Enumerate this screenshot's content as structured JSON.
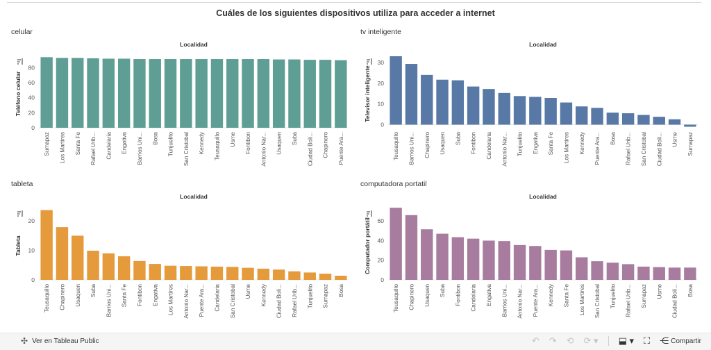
{
  "page": {
    "title": "Cuáles de los siguientes dispositivos utiliza para acceder a internet"
  },
  "footer": {
    "view_label": "Ver en Tableau Public",
    "share_label": "Compartir",
    "icons": [
      "undo-icon",
      "redo-icon",
      "revert-icon",
      "refresh-icon",
      "download-icon",
      "fullscreen-icon",
      "share-icon"
    ]
  },
  "chart_data": [
    {
      "type": "bar",
      "panel_title": "celular",
      "title": "Localidad",
      "xlabel": "",
      "ylabel": "Teléfono celular",
      "color": "#5f9e94",
      "ylim": [
        0,
        98
      ],
      "ticks": [
        0,
        20,
        40,
        60,
        80
      ],
      "categories": [
        "Sumapaz",
        "Los Martires",
        "Santa Fe",
        "Rafael Urib...",
        "Candelaria",
        "Engativa",
        "Barrios Uni...",
        "Bosa",
        "Tunjuelito",
        "San Cristobal",
        "Kennedy",
        "Teusaquillo",
        "Usme",
        "Fontibon",
        "Antonio Nar...",
        "Usaquen",
        "Suba",
        "Ciudad Bolí...",
        "Chapinero",
        "Puente Ara..."
      ],
      "values": [
        94,
        93,
        93,
        92.5,
        92,
        92,
        91.5,
        91.5,
        91.5,
        91.5,
        91.5,
        91.5,
        91.5,
        91.5,
        91.5,
        91,
        91,
        90.5,
        90.5,
        90
      ]
    },
    {
      "type": "bar",
      "panel_title": "tv inteligente",
      "title": "Localidad",
      "xlabel": "",
      "ylabel": "Televisor inteligente",
      "color": "#5878a6",
      "ylim": [
        -1.5,
        34
      ],
      "ticks": [
        0,
        10,
        20,
        30
      ],
      "categories": [
        "Teusaquillo",
        "Barrios Uni...",
        "Chapinero",
        "Usaquen",
        "Suba",
        "Fontibon",
        "Candelaria",
        "Antonio Nar...",
        "Tunjuelito",
        "Engativa",
        "Santa Fe",
        "Los Martires",
        "Kennedy",
        "Puente Ara...",
        "Bosa",
        "Rafael Urib...",
        "San Cristobal",
        "Ciudad Bolí...",
        "Usme",
        "Sumapaz"
      ],
      "values": [
        33,
        29.3,
        24,
        21.7,
        21.4,
        18.4,
        17.2,
        15.3,
        13.8,
        13.4,
        12.9,
        10.7,
        8.8,
        8.1,
        5.8,
        5.5,
        4.7,
        3.8,
        2.6,
        -1
      ]
    },
    {
      "type": "bar",
      "panel_title": "tableta",
      "title": "Localidad",
      "xlabel": "",
      "ylabel": "Tableta",
      "color": "#e59a3c",
      "ylim": [
        0,
        25
      ],
      "ticks": [
        0,
        10,
        20
      ],
      "categories": [
        "Teusaquillo",
        "Chapinero",
        "Usaquen",
        "Suba",
        "Barrios Uni...",
        "Santa Fe",
        "Fontibon",
        "Engativa",
        "Los Martires",
        "Antonio Nar...",
        "Puente Ara...",
        "Candelaria",
        "San Cristobal",
        "Usme",
        "Kennedy",
        "Ciudad Bolí...",
        "Rafael Urib...",
        "Tunjuelito",
        "Sumapaz",
        "Bosa"
      ],
      "values": [
        23.7,
        17.9,
        15,
        9.9,
        9,
        8,
        6.4,
        5.4,
        4.8,
        4.7,
        4.6,
        4.5,
        4.4,
        4.1,
        3.8,
        3.5,
        2.9,
        2.5,
        2.1,
        1.4
      ]
    },
    {
      "type": "bar",
      "panel_title": "computadora portatil",
      "title": "Localidad",
      "xlabel": "",
      "ylabel": "Computador portátil",
      "color": "#a87c9f",
      "ylim": [
        0,
        75
      ],
      "ticks": [
        0,
        20,
        40,
        60
      ],
      "categories": [
        "Teusaquillo",
        "Chapinero",
        "Usaquen",
        "Suba",
        "Fontibon",
        "Candelaria",
        "Engativa",
        "Barrios Uni...",
        "Antonio Nar...",
        "Puente Ara...",
        "Kennedy",
        "Santa Fe",
        "Los Martires",
        "San Cristobal",
        "Tunjuelito",
        "Rafael Urib...",
        "Sumapaz",
        "Usme",
        "Ciudad Bolí...",
        "Bosa"
      ],
      "values": [
        73.5,
        66,
        51.5,
        47,
        43.5,
        42,
        40,
        39.5,
        35.5,
        34.5,
        30.5,
        30,
        23,
        19,
        17.5,
        16,
        13.5,
        13,
        12.5,
        12.5
      ]
    }
  ]
}
